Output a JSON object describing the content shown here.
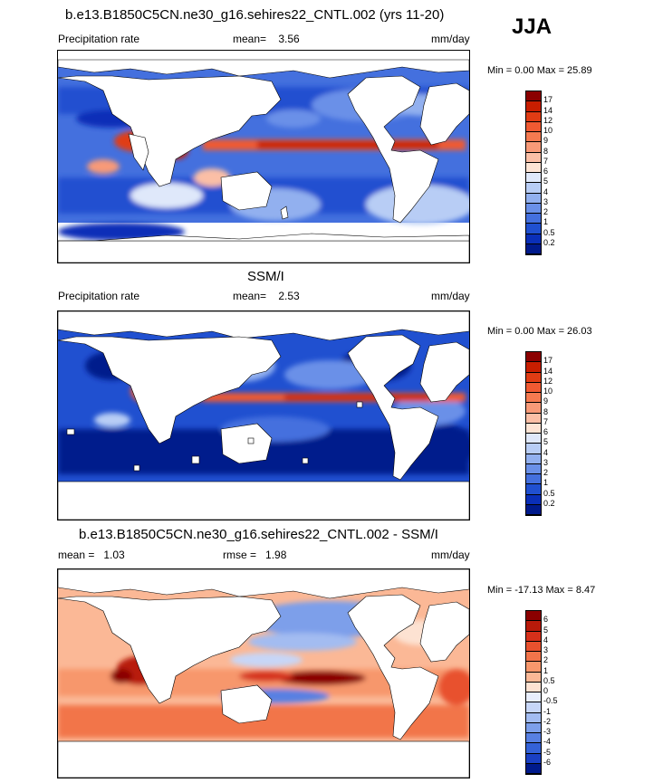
{
  "season": "JJA",
  "panels": [
    {
      "title": "b.e13.B1850C5CN.ne30_g16.sehires22_CNTL.002 (yrs 11-20)",
      "left_label": "Precipitation rate",
      "mid_label": "mean=",
      "mid_value": "3.56",
      "right_label": "mm/day",
      "minmax": "Min =   0.00 Max =  25.89",
      "levels": [
        "17",
        "14",
        "12",
        "10",
        "9",
        "8",
        "7",
        "6",
        "5",
        "4",
        "3",
        "2",
        "1",
        "0.5",
        "0.2"
      ],
      "colors": [
        "#8b0000",
        "#c81e00",
        "#e03c14",
        "#f05a32",
        "#f57a50",
        "#f89a78",
        "#fbbfa6",
        "#fde4d4",
        "#dfe8fa",
        "#b8cdf5",
        "#92b0ef",
        "#6a90e8",
        "#4470de",
        "#2050d0",
        "#0a2fb8",
        "#001a8c"
      ]
    },
    {
      "title": "SSM/I",
      "left_label": "Precipitation rate",
      "mid_label": "mean=",
      "mid_value": "2.53",
      "right_label": "mm/day",
      "minmax": "Min =   0.00 Max =  26.03",
      "levels": [
        "17",
        "14",
        "12",
        "10",
        "9",
        "8",
        "7",
        "6",
        "5",
        "4",
        "3",
        "2",
        "1",
        "0.5",
        "0.2"
      ],
      "colors": [
        "#8b0000",
        "#c81e00",
        "#e03c14",
        "#f05a32",
        "#f57a50",
        "#f89a78",
        "#fbbfa6",
        "#fde4d4",
        "#dfe8fa",
        "#b8cdf5",
        "#92b0ef",
        "#6a90e8",
        "#4470de",
        "#2050d0",
        "#0a2fb8",
        "#001a8c"
      ]
    },
    {
      "title": "b.e13.B1850C5CN.ne30_g16.sehires22_CNTL.002 - SSM/I",
      "left_label": "mean =",
      "left_value": "1.03",
      "mid_label": "rmse =",
      "mid_value": "1.98",
      "right_label": "mm/day",
      "minmax": "Min = -17.13 Max =   8.47",
      "levels": [
        "6",
        "5",
        "4",
        "3",
        "2",
        "1",
        "0.5",
        "0",
        "-0.5",
        "-1",
        "-2",
        "-3",
        "-4",
        "-5",
        "-6"
      ],
      "colors": [
        "#8b0000",
        "#b81a0a",
        "#d6301a",
        "#e8512e",
        "#f2744a",
        "#f7976c",
        "#fbb896",
        "#fde2d2",
        "#e8eefc",
        "#c7d6f7",
        "#a3bcf1",
        "#7d9fea",
        "#5880e2",
        "#3462d8",
        "#1a40c4",
        "#001a8c"
      ]
    }
  ],
  "chart_data": [
    {
      "type": "heatmap",
      "title": "b.e13.B1850C5CN.ne30_g16.sehires22_CNTL.002 (yrs 11-20)",
      "variable": "Precipitation rate",
      "units": "mm/day",
      "mean": 3.56,
      "min": 0.0,
      "max": 25.89,
      "contour_levels": [
        0.2,
        0.5,
        1,
        2,
        3,
        4,
        5,
        6,
        7,
        8,
        9,
        10,
        12,
        14,
        17
      ]
    },
    {
      "type": "heatmap",
      "title": "SSM/I",
      "variable": "Precipitation rate",
      "units": "mm/day",
      "mean": 2.53,
      "min": 0.0,
      "max": 26.03,
      "contour_levels": [
        0.2,
        0.5,
        1,
        2,
        3,
        4,
        5,
        6,
        7,
        8,
        9,
        10,
        12,
        14,
        17
      ]
    },
    {
      "type": "heatmap",
      "title": "b.e13.B1850C5CN.ne30_g16.sehires22_CNTL.002 - SSM/I",
      "units": "mm/day",
      "mean": 1.03,
      "rmse": 1.98,
      "min": -17.13,
      "max": 8.47,
      "contour_levels": [
        -6,
        -5,
        -4,
        -3,
        -2,
        -1,
        -0.5,
        0,
        0.5,
        1,
        2,
        3,
        4,
        5,
        6
      ]
    }
  ]
}
